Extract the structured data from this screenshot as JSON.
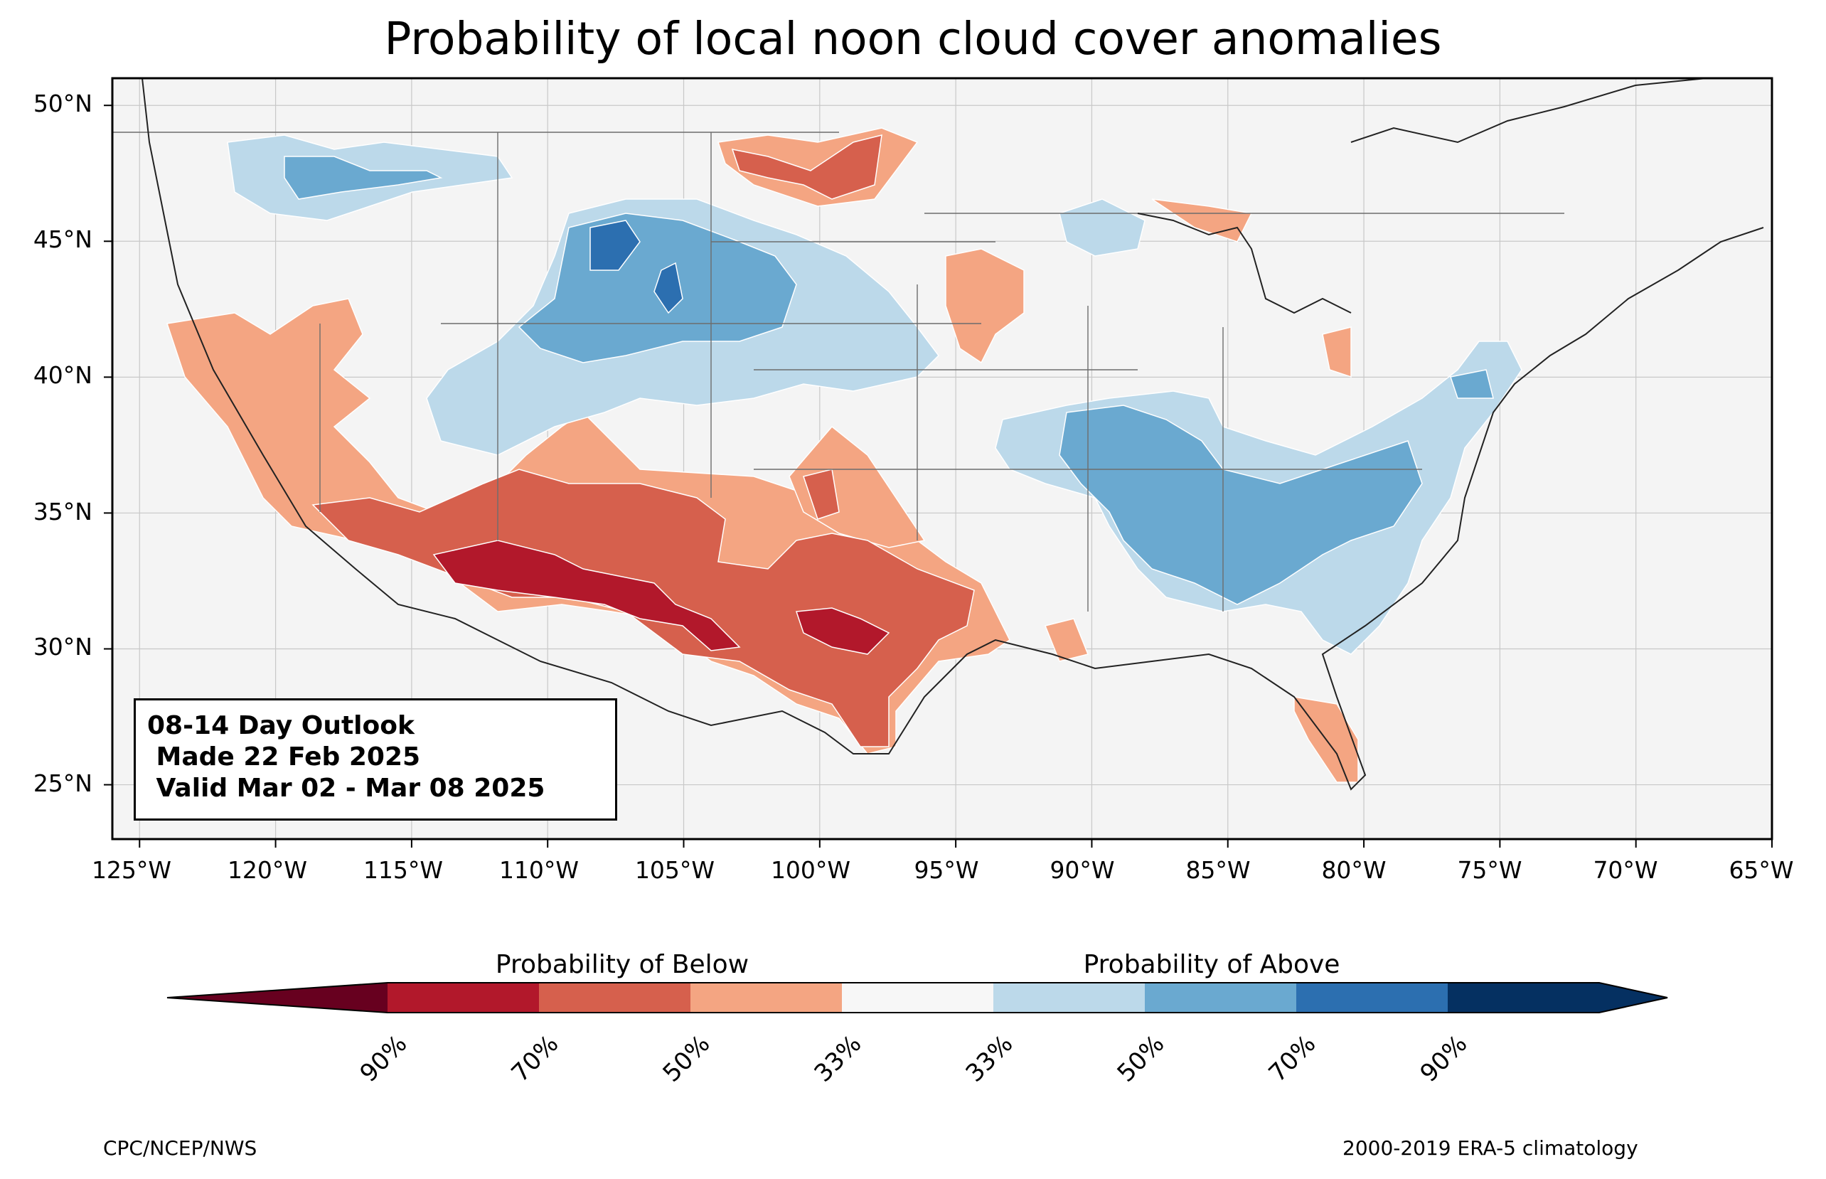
{
  "title": "Probability of local noon cloud cover anomalies",
  "map": {
    "type": "filled-contour-map",
    "region": "Contiguous United States",
    "lon_range": [
      -126,
      -65
    ],
    "lat_range": [
      23,
      51
    ],
    "lat_labels": [
      "50°N",
      "45°N",
      "40°N",
      "35°N",
      "30°N",
      "25°N"
    ],
    "lon_labels": [
      "125°W",
      "120°W",
      "115°W",
      "110°W",
      "105°W",
      "100°W",
      "95°W",
      "90°W",
      "85°W",
      "80°W",
      "75°W",
      "70°W",
      "65°W"
    ],
    "gridlines": true,
    "colors": {
      "below_90": "#67001f",
      "below_70": "#b2182b",
      "below_50": "#d6604d",
      "below_33": "#f4a582",
      "normal": "#f7f7f7",
      "above_33": "#bcd9ea",
      "above_50": "#6aa9d0",
      "above_70": "#2c6fb0",
      "above_90": "#053061"
    }
  },
  "outlook": {
    "line1": "08-14 Day Outlook",
    "line2": " Made 22 Feb 2025",
    "line3": " Valid Mar 02 - Mar 08 2025"
  },
  "colorbar": {
    "below_label": "Probability of Below",
    "above_label": "Probability of Above",
    "ticks": [
      "90%",
      "70%",
      "50%",
      "33%",
      "33%",
      "50%",
      "70%",
      "90%"
    ]
  },
  "credits": {
    "left": "CPC/NCEP/NWS",
    "right": "2000-2019 ERA-5 climatology"
  }
}
